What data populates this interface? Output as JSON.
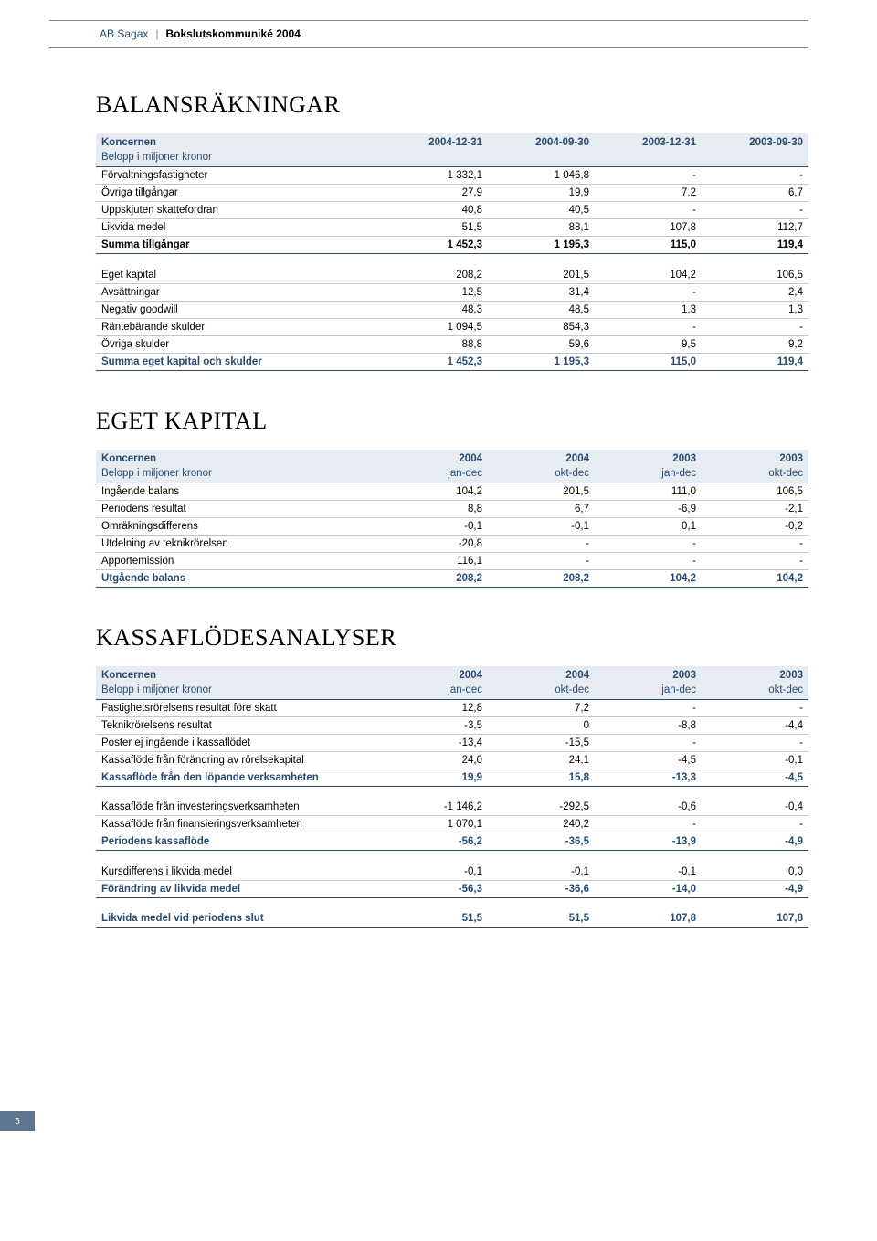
{
  "header": {
    "company": "AB Sagax",
    "title": "Bokslutskommuniké 2004"
  },
  "page_number": "5",
  "sections": {
    "balance": {
      "title": "BALANSRÄKNINGAR"
    },
    "equity": {
      "title": "EGET KAPITAL"
    },
    "cashflow": {
      "title": "KASSAFLÖDESANALYSER"
    }
  },
  "balance": {
    "hdr_left": "Koncernen",
    "hdr_sub": "Belopp i miljoner kronor",
    "cols": [
      "2004-12-31",
      "2004-09-30",
      "2003-12-31",
      "2003-09-30"
    ],
    "rows": [
      {
        "l": "Förvaltningsfastigheter",
        "v": [
          "1 332,1",
          "1 046,8",
          "-",
          "-"
        ]
      },
      {
        "l": "Övriga tillgångar",
        "v": [
          "27,9",
          "19,9",
          "7,2",
          "6,7"
        ]
      },
      {
        "l": "Uppskjuten skattefordran",
        "v": [
          "40,8",
          "40,5",
          "-",
          "-"
        ]
      },
      {
        "l": "Likvida medel",
        "v": [
          "51,5",
          "88,1",
          "107,8",
          "112,7"
        ]
      }
    ],
    "sum1": {
      "l": "Summa tillgångar",
      "v": [
        "1 452,3",
        "1 195,3",
        "115,0",
        "119,4"
      ]
    },
    "rows2": [
      {
        "l": "Eget kapital",
        "v": [
          "208,2",
          "201,5",
          "104,2",
          "106,5"
        ]
      },
      {
        "l": "Avsättningar",
        "v": [
          "12,5",
          "31,4",
          "-",
          "2,4"
        ]
      },
      {
        "l": "Negativ goodwill",
        "v": [
          "48,3",
          "48,5",
          "1,3",
          "1,3"
        ]
      },
      {
        "l": "Räntebärande skulder",
        "v": [
          "1 094,5",
          "854,3",
          "-",
          "-"
        ]
      },
      {
        "l": "Övriga skulder",
        "v": [
          "88,8",
          "59,6",
          "9,5",
          "9,2"
        ]
      }
    ],
    "sum2": {
      "l": "Summa eget kapital och skulder",
      "v": [
        "1 452,3",
        "1 195,3",
        "115,0",
        "119,4"
      ]
    }
  },
  "equity": {
    "hdr_left": "Koncernen",
    "hdr_sub": "Belopp i miljoner kronor",
    "years": [
      "2004",
      "2004",
      "2003",
      "2003"
    ],
    "periods": [
      "jan-dec",
      "okt-dec",
      "jan-dec",
      "okt-dec"
    ],
    "rows": [
      {
        "l": "Ingående balans",
        "v": [
          "104,2",
          "201,5",
          "111,0",
          "106,5"
        ]
      },
      {
        "l": "Periodens resultat",
        "v": [
          "8,8",
          "6,7",
          "-6,9",
          "-2,1"
        ]
      },
      {
        "l": "Omräkningsdifferens",
        "v": [
          "-0,1",
          "-0,1",
          "0,1",
          "-0,2"
        ]
      },
      {
        "l": "Utdelning av teknikrörelsen",
        "v": [
          "-20,8",
          "-",
          "-",
          "-"
        ]
      },
      {
        "l": "Apportemission",
        "v": [
          "116,1",
          "-",
          "-",
          "-"
        ]
      }
    ],
    "sum": {
      "l": "Utgående balans",
      "v": [
        "208,2",
        "208,2",
        "104,2",
        "104,2"
      ]
    }
  },
  "cashflow": {
    "hdr_left": "Koncernen",
    "hdr_sub": "Belopp i miljoner kronor",
    "years": [
      "2004",
      "2004",
      "2003",
      "2003"
    ],
    "periods": [
      "jan-dec",
      "okt-dec",
      "jan-dec",
      "okt-dec"
    ],
    "rows1": [
      {
        "l": "Fastighetsrörelsens resultat före skatt",
        "v": [
          "12,8",
          "7,2",
          "-",
          "-"
        ]
      },
      {
        "l": "Teknikrörelsens resultat",
        "v": [
          "-3,5",
          "0",
          "-8,8",
          "-4,4"
        ]
      },
      {
        "l": "Poster ej ingående i kassaflödet",
        "v": [
          "-13,4",
          "-15,5",
          "-",
          "-"
        ]
      },
      {
        "l": "Kassaflöde från förändring av rörelsekapital",
        "v": [
          "24,0",
          "24,1",
          "-4,5",
          "-0,1"
        ]
      }
    ],
    "sum1": {
      "l": "Kassaflöde från den löpande verksamheten",
      "v": [
        "19,9",
        "15,8",
        "-13,3",
        "-4,5"
      ]
    },
    "rows2": [
      {
        "l": "Kassaflöde från investeringsverksamheten",
        "v": [
          "-1 146,2",
          "-292,5",
          "-0,6",
          "-0,4"
        ]
      },
      {
        "l": "Kassaflöde från finansieringsverksamheten",
        "v": [
          "1 070,1",
          "240,2",
          "-",
          "-"
        ]
      }
    ],
    "sum2": {
      "l": "Periodens kassaflöde",
      "v": [
        "-56,2",
        "-36,5",
        "-13,9",
        "-4,9"
      ]
    },
    "rows3": [
      {
        "l": "Kursdifferens i likvida medel",
        "v": [
          "-0,1",
          "-0,1",
          "-0,1",
          "0,0"
        ]
      }
    ],
    "sum3": {
      "l": "Förändring av likvida medel",
      "v": [
        "-56,3",
        "-36,6",
        "-14,0",
        "-4,9"
      ]
    },
    "sum4": {
      "l": "Likvida medel vid periodens slut",
      "v": [
        "51,5",
        "51,5",
        "107,8",
        "107,8"
      ]
    }
  }
}
